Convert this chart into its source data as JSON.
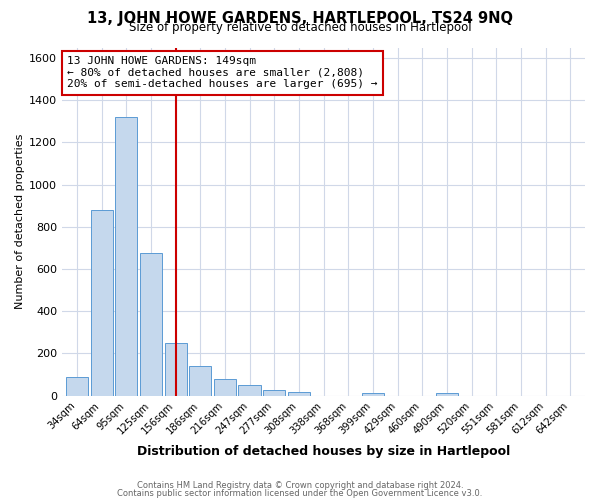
{
  "title": "13, JOHN HOWE GARDENS, HARTLEPOOL, TS24 9NQ",
  "subtitle": "Size of property relative to detached houses in Hartlepool",
  "xlabel": "Distribution of detached houses by size in Hartlepool",
  "ylabel": "Number of detached properties",
  "bar_heights": [
    88,
    880,
    1320,
    675,
    250,
    140,
    78,
    52,
    28,
    18,
    0,
    0,
    15,
    0,
    0,
    15,
    0,
    0,
    0,
    0,
    0
  ],
  "bin_labels": [
    "34sqm",
    "64sqm",
    "95sqm",
    "125sqm",
    "156sqm",
    "186sqm",
    "216sqm",
    "247sqm",
    "277sqm",
    "308sqm",
    "338sqm",
    "368sqm",
    "399sqm",
    "429sqm",
    "460sqm",
    "490sqm",
    "520sqm",
    "551sqm",
    "581sqm",
    "612sqm",
    "642sqm"
  ],
  "bar_color": "#c5d8ed",
  "bar_edge_color": "#5b9bd5",
  "vline_x_label": "156sqm",
  "vline_color": "#cc0000",
  "annotation_line1": "13 JOHN HOWE GARDENS: 149sqm",
  "annotation_line2": "← 80% of detached houses are smaller (2,808)",
  "annotation_line3": "20% of semi-detached houses are larger (695) →",
  "annotation_box_color": "#ffffff",
  "annotation_box_edge": "#cc0000",
  "ylim": [
    0,
    1650
  ],
  "yticks": [
    0,
    200,
    400,
    600,
    800,
    1000,
    1200,
    1400,
    1600
  ],
  "footer_line1": "Contains HM Land Registry data © Crown copyright and database right 2024.",
  "footer_line2": "Contains public sector information licensed under the Open Government Licence v3.0.",
  "bg_color": "#ffffff",
  "grid_color": "#d0d8e8"
}
